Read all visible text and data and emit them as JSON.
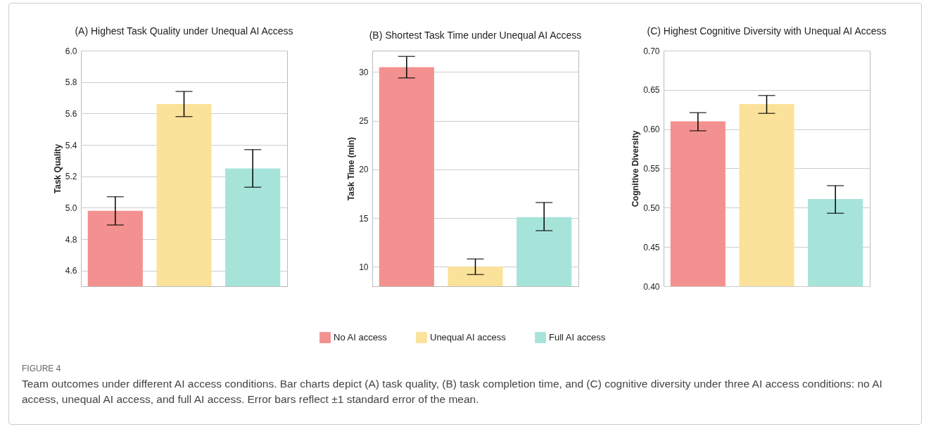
{
  "chart_data": [
    {
      "type": "bar",
      "title": "(A) Highest Task Quality under Unequal AI Access",
      "ylabel": "Task Quality",
      "categories": [
        null,
        null,
        null
      ],
      "values": [
        4.98,
        5.66,
        5.25
      ],
      "colors": [
        "#f2918f",
        "#fbe29a",
        "#a6e4da"
      ],
      "errors": [
        [
          4.89,
          5.07
        ],
        [
          5.58,
          5.74
        ],
        [
          5.13,
          5.37
        ]
      ],
      "ylim": [
        4.5,
        6.0
      ],
      "yticks": [
        4.6,
        4.8,
        {
          "value": 5,
          "label": "5.0"
        },
        5.2,
        5.4,
        5.6,
        5.8,
        {
          "value": 6,
          "label": "6.0"
        }
      ],
      "grid": "y",
      "tick_labels": "y",
      "annotations": [
        "FIGURE 4",
        "Team outcomes under different AI access conditions. Bar charts depict (A) task quality, (B) task completion time, and (C) cognitive diversity under three AI access conditions: no AI access, unequal AI access, and full AI access. Error bars reflect ±1 standard error of the mean."
      ]
    },
    {
      "type": "bar",
      "title": "(B) Shortest Task Time under Unequal AI Access",
      "ylabel": "Task Time (min)",
      "categories": [
        null,
        null,
        null
      ],
      "series": [
        {
          "name": "No AI access",
          "color": "#f2918f",
          "values": [
            30.5,
            null,
            null
          ],
          "errors": [
            [
              29.4,
              31.6
            ],
            null,
            null
          ]
        },
        {
          "name": "Unequal AI access",
          "color": "#fbe29a",
          "values": [
            null,
            10.0,
            null
          ],
          "errors": [
            null,
            [
              9.2,
              10.8
            ],
            null
          ]
        },
        {
          "name": "Full AI access",
          "color": "#a6e4da",
          "values": [
            null,
            null,
            15.1
          ],
          "errors": [
            null,
            null,
            [
              13.7,
              16.6
            ]
          ]
        }
      ],
      "ylim": [
        8,
        32.2
      ],
      "yticks": [
        10,
        15,
        20,
        25,
        30
      ],
      "grid": "y",
      "legend": "bottom",
      "tick_labels": "y"
    },
    {
      "type": "bar",
      "title": "(C) Highest Cognitive Diversity with Unequal AI Access",
      "ylabel": "Cognitive Diversity",
      "categories": [
        null,
        null,
        null
      ],
      "values": [
        0.61,
        0.632,
        0.511
      ],
      "colors": [
        "#f2918f",
        "#fbe29a",
        "#a6e4da"
      ],
      "errors": [
        [
          0.598,
          0.621
        ],
        [
          0.62,
          0.643
        ],
        [
          0.493,
          0.528
        ]
      ],
      "ylim": [
        0.4,
        0.7
      ],
      "yticks": [
        {
          "value": 0.4,
          "label": "0.40"
        },
        0.45,
        {
          "value": 0.5,
          "label": "0.50"
        },
        0.55,
        {
          "value": 0.6,
          "label": "0.60"
        },
        0.65,
        {
          "value": 0.7,
          "label": "0.70"
        }
      ],
      "grid": "y",
      "tick_labels": "y"
    }
  ]
}
